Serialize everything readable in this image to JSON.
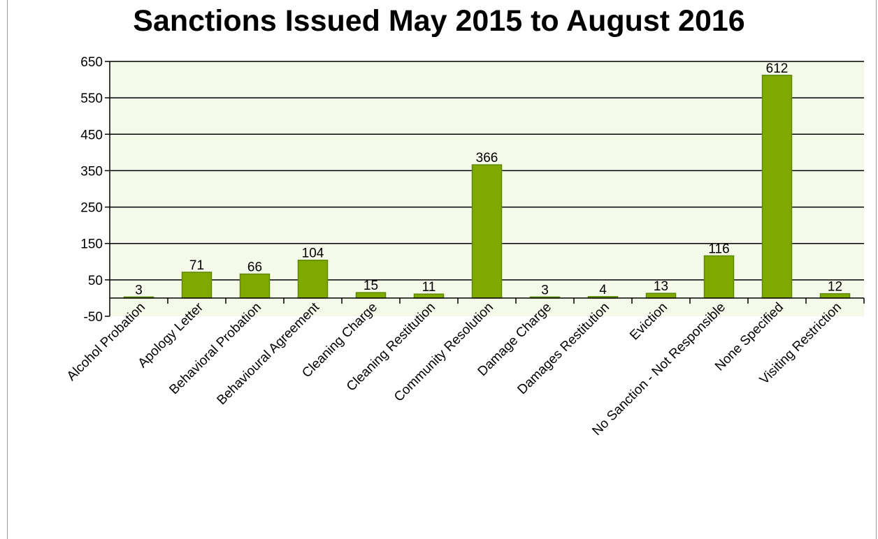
{
  "chart_data": {
    "type": "bar",
    "title": "Sanctions Issued May 2015 to August 2016",
    "categories": [
      "Alcohol Probation",
      "Apology Letter",
      "Behavioral Probation",
      "Behavioural Agreement",
      "Cleaning Charge",
      "Cleaning Restitution",
      "Community Resolution",
      "Damage Charge",
      "Damages Restitution",
      "Eviction",
      "No Sanction - Not Responsible",
      "None Specified",
      "Visiting Restriction"
    ],
    "values": [
      3,
      71,
      66,
      104,
      15,
      11,
      366,
      3,
      4,
      13,
      116,
      612,
      12
    ],
    "ylim": [
      -50,
      650
    ],
    "yticks": [
      -50,
      50,
      150,
      250,
      350,
      450,
      550,
      650
    ],
    "ytick_labels": [
      "-50",
      "50",
      "150",
      "250",
      "350",
      "450",
      "550",
      "650"
    ],
    "xlabel": "",
    "ylabel": "",
    "grid": true,
    "legend": "none",
    "colors": {
      "bar_fill": "#7fa800",
      "bar_stroke": "#5f8a00",
      "plot_background": "#f4f9e9"
    }
  }
}
